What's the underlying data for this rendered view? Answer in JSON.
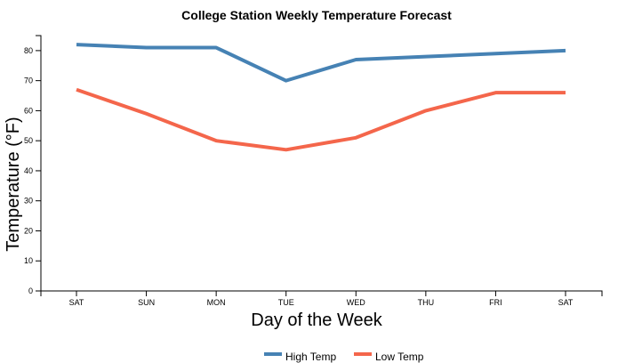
{
  "chart_data": {
    "type": "line",
    "title": "College Station Weekly Temperature Forecast",
    "xlabel": "Day of the Week",
    "ylabel": "Temperature (°F)",
    "categories": [
      "SAT",
      "SUN",
      "MON",
      "TUE",
      "WED",
      "THU",
      "FRI",
      "SAT"
    ],
    "ylim": [
      0,
      85
    ],
    "yticks": [
      0,
      10,
      20,
      30,
      40,
      50,
      60,
      70,
      80
    ],
    "legend_position": "bottom-center",
    "grid": false,
    "series": [
      {
        "name": "High Temp",
        "color": "#4682b4",
        "values": [
          82,
          81,
          81,
          70,
          77,
          78,
          79,
          80
        ]
      },
      {
        "name": "Low Temp",
        "color": "#f4664b",
        "values": [
          67,
          59,
          50,
          47,
          51,
          60,
          66,
          66
        ]
      }
    ]
  }
}
